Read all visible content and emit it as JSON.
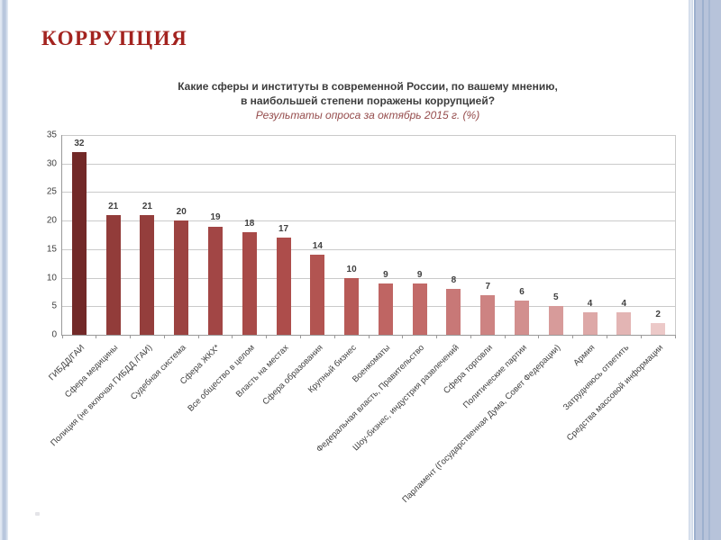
{
  "slide": {
    "title": "КОРРУПЦИЯ"
  },
  "chart_data": {
    "type": "bar",
    "title": "Какие сферы и институты в современной России, по вашему мнению, в наибольшей степени поражены коррупцией?",
    "title_lines": [
      "Какие сферы и институты в современной России, по вашему мнению,",
      "в наибольшей степени поражены коррупцией?"
    ],
    "subtitle": "Результаты опроса за октябрь 2015 г. (%)",
    "categories": [
      "ГИБДД/ГАИ",
      "Сфера медицины",
      "Полиция (не включая ГИБДД /ГАИ)",
      "Судебная система",
      "Сфера ЖКХ*",
      "Все общество в целом",
      "Власть на местах",
      "Сфера образования",
      "Крупный бизнес",
      "Военкоматы",
      "Федеральная власть, Правительство",
      "Шоу-бизнес, индустрия развлечений",
      "Сфера торговли",
      "Политические партии",
      "Парламент (Государственная Дума, Совет Федерации)",
      "Армия",
      "Затрудняюсь ответить",
      "Средства массовой информации"
    ],
    "values": [
      32,
      21,
      21,
      20,
      19,
      18,
      17,
      14,
      10,
      9,
      9,
      8,
      7,
      6,
      5,
      4,
      4,
      2
    ],
    "bar_colors": [
      "#722928",
      "#923c3a",
      "#943e3c",
      "#9c4341",
      "#a24645",
      "#a84a48",
      "#ad4d4b",
      "#b25451",
      "#b75a57",
      "#bf6563",
      "#c26a68",
      "#c87877",
      "#cd8382",
      "#d28f8e",
      "#d79b9a",
      "#dda8a7",
      "#e3b5b4",
      "#ecc9c8"
    ],
    "xlabel": "",
    "ylabel": "",
    "ylim": [
      0,
      35
    ],
    "yticks": [
      0,
      5,
      10,
      15,
      20,
      25,
      30,
      35
    ],
    "grid": true,
    "legend": false
  },
  "theme": {
    "slide_title_color": "#a3231f",
    "chart_title_color": "#3d3d3d",
    "subtitle_color": "#954c4c",
    "axis_color": "#9a9a9a",
    "grid_color": "#cacaca",
    "tick_label_color": "#3f3f3f",
    "right_band_color": "#b7c3da",
    "right_band_line_color": "#9db0ce",
    "right_thin_stripe_color": "#cbd6e7"
  }
}
